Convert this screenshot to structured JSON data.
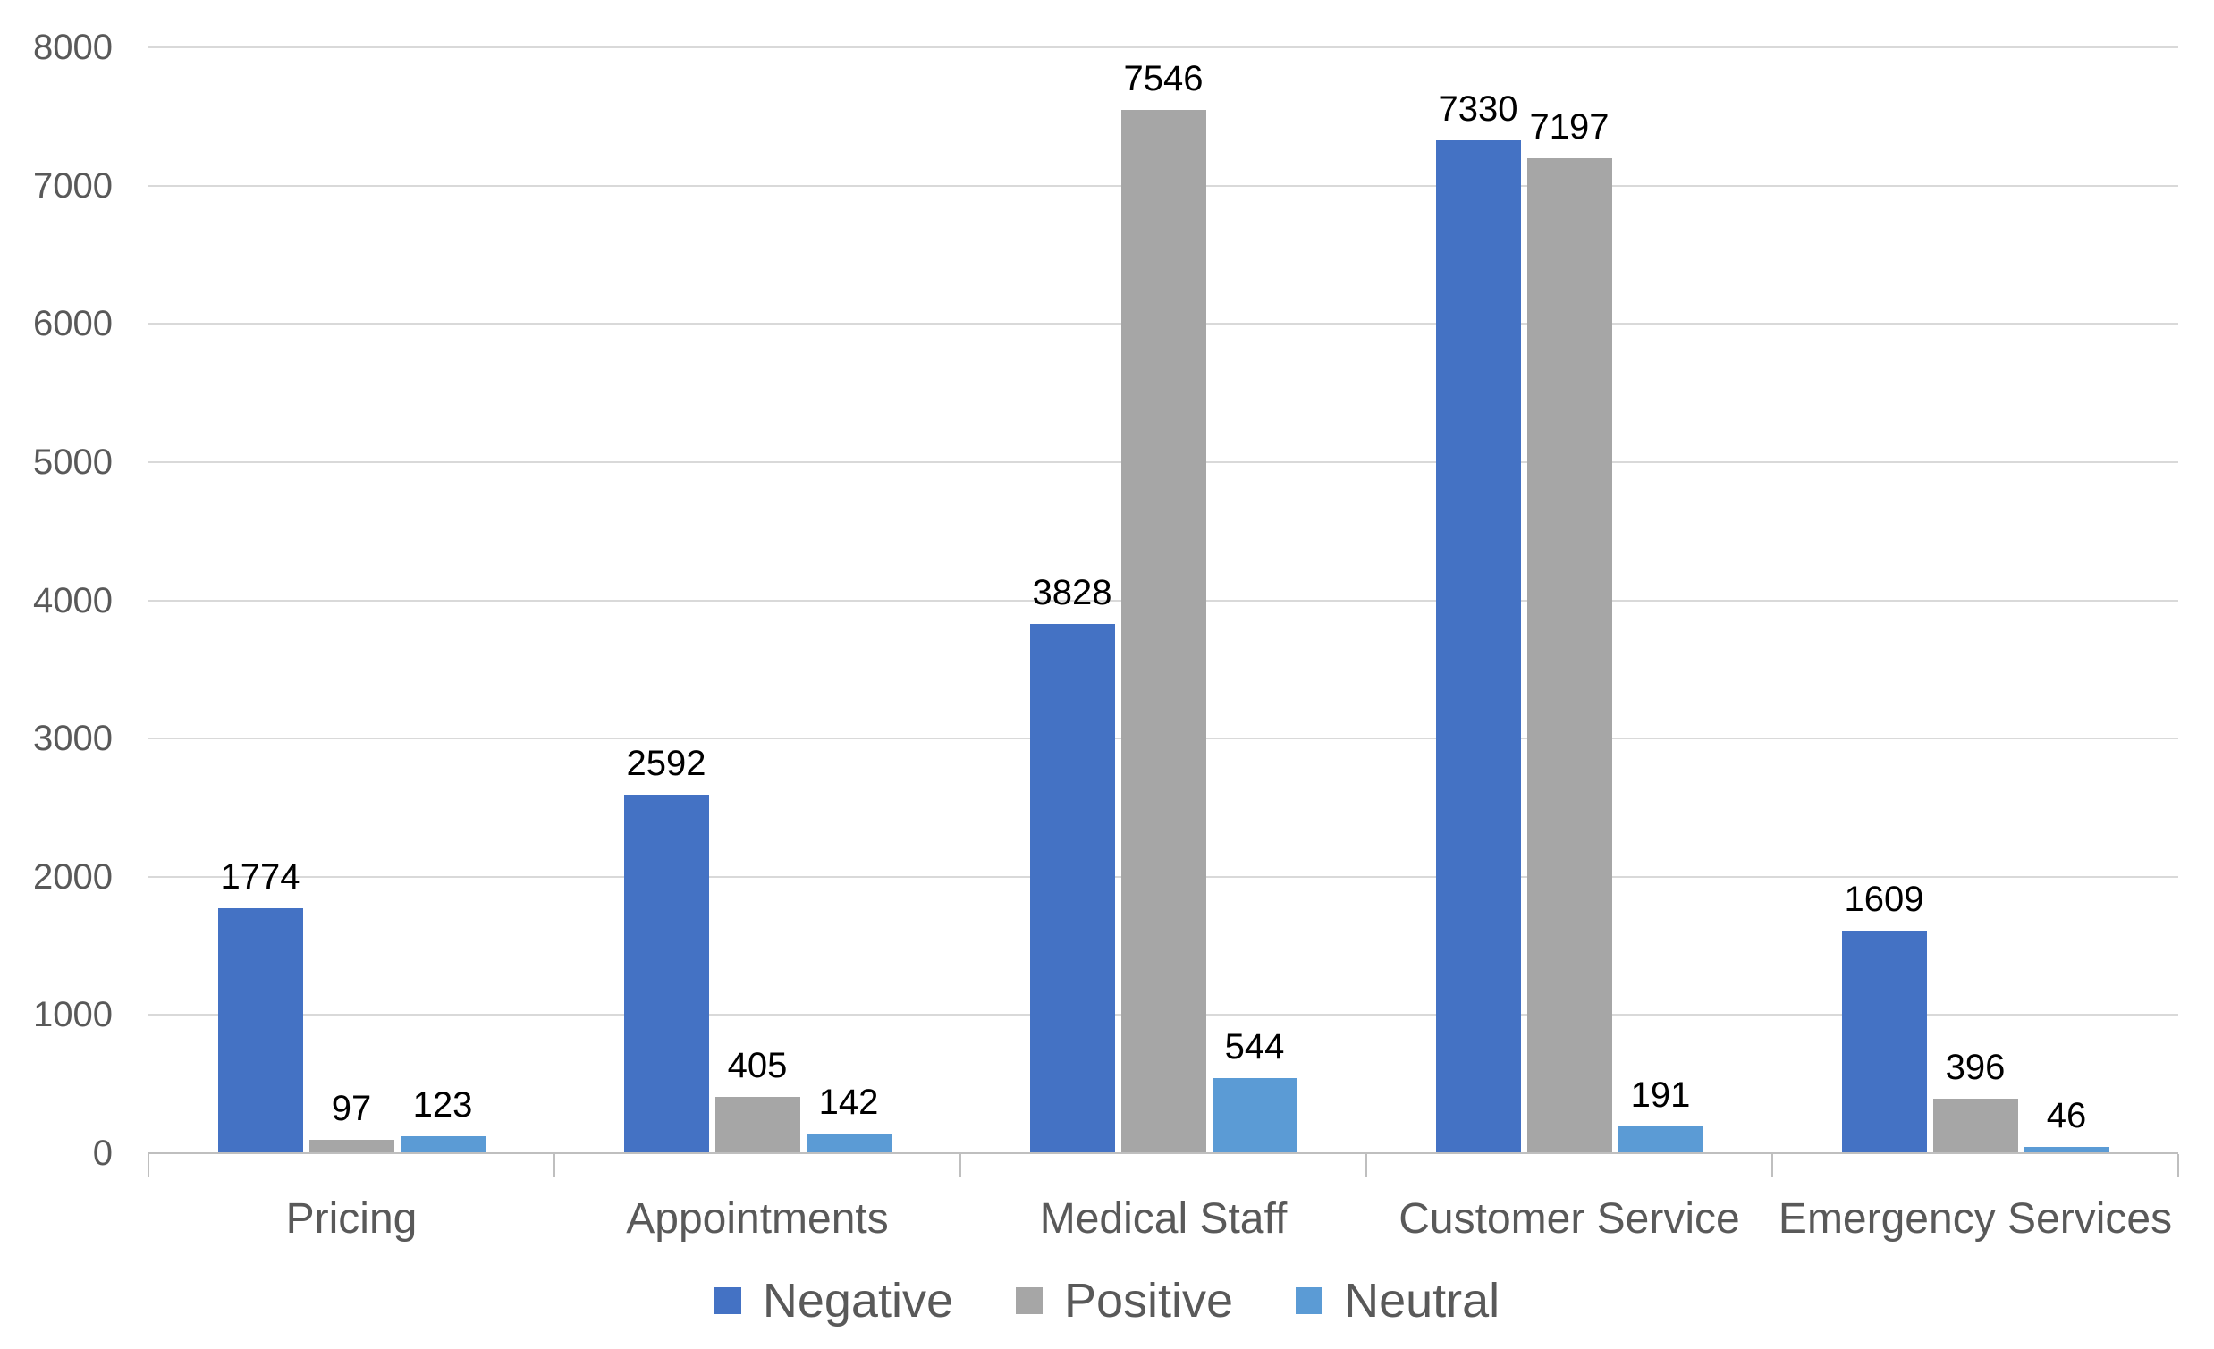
{
  "chart_data": {
    "type": "bar",
    "title": "",
    "xlabel": "",
    "ylabel": "",
    "categories": [
      "Pricing",
      "Appointments",
      "Medical Staff",
      "Customer Service",
      "Emergency Services"
    ],
    "series": [
      {
        "name": "Negative",
        "color": "#4472C4",
        "values": [
          1774,
          2592,
          3828,
          7330,
          1609
        ]
      },
      {
        "name": "Positive",
        "color": "#A6A6A6",
        "values": [
          97,
          405,
          7546,
          7197,
          396
        ]
      },
      {
        "name": "Neutral",
        "color": "#5B9BD5",
        "values": [
          123,
          142,
          544,
          191,
          46
        ]
      }
    ],
    "ylim": [
      0,
      8000
    ],
    "yticks": [
      0,
      1000,
      2000,
      3000,
      4000,
      5000,
      6000,
      7000,
      8000
    ],
    "grid": true,
    "data_labels": true,
    "legend_position": "bottom"
  },
  "style_colors": {
    "gridline": "#D9D9D9",
    "axis_line": "#BFBFBF",
    "tick_label": "#595959",
    "category_label": "#595959",
    "legend_label": "#595959",
    "data_label": "#000000",
    "background": "#FFFFFF"
  }
}
